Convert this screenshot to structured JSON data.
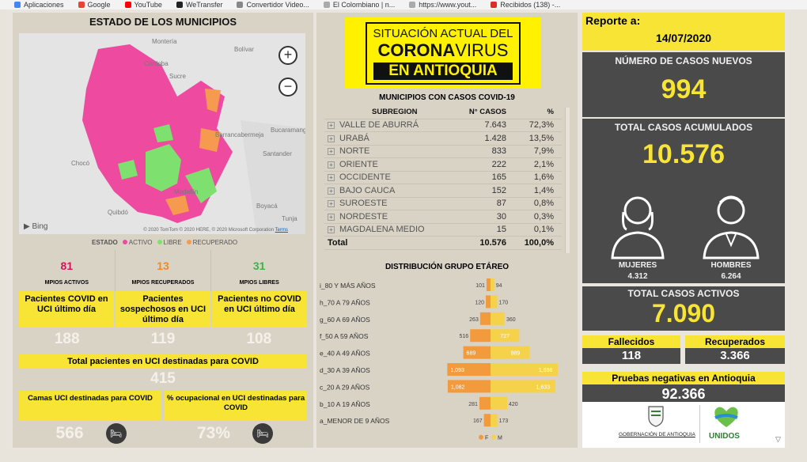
{
  "browser": {
    "bookmarks": [
      "Aplicaciones",
      "Google",
      "YouTube",
      "WeTransfer",
      "Convertidor Video...",
      "El Colombiano | n...",
      "https://www.yout...",
      "Recibidos (138) -..."
    ]
  },
  "municipios": {
    "title": "ESTADO DE LOS MUNICIPIOS",
    "map": {
      "zoom_in": "+",
      "zoom_out": "−",
      "bing": "Bing",
      "copyright": "© 2020 TomTom © 2020 HERE, © 2020 Microsoft Corporation",
      "terms": "Terms",
      "places": [
        "Montería",
        "Córdoba",
        "Bolívar",
        "Sucre",
        "Chocó",
        "Quibdó",
        "Barrancabermeja",
        "Bucaramanga",
        "Santander",
        "Medellín",
        "Tunja",
        "Boyacá"
      ]
    },
    "legend": {
      "label": "ESTADO",
      "activo": "ACTIVO",
      "libre": "LIBRE",
      "recuperado": "RECUPERADO",
      "color_activo": "#ee4aa0",
      "color_libre": "#7ee06e",
      "color_recuperado": "#f59a4e"
    },
    "kpis": [
      {
        "value": "81",
        "label": "MPIOS ACTIVOS",
        "color": "#d4145a"
      },
      {
        "value": "13",
        "label": "MPIOS RECUPERADOS",
        "color": "#f08a24"
      },
      {
        "value": "31",
        "label": "MPIOS LIBRES",
        "color": "#39b54a"
      }
    ]
  },
  "uci": {
    "boxes": [
      {
        "label": "Pacientes COVID en UCI último día",
        "value": "188"
      },
      {
        "label": "Pacientes sospechosos en UCI último día",
        "value": "119"
      },
      {
        "label": "Pacientes no COVID en UCI último día",
        "value": "108"
      }
    ],
    "total_label": "Total pacientes en UCI destinadas para COVID",
    "total_value": "415",
    "camas_label": "Camas UCI destinadas para COVID",
    "camas_value": "566",
    "ocupacion_label": "% ocupacional en UCI destinadas para COVID",
    "ocupacion_value": "73%"
  },
  "header": {
    "line1": "SITUACIÓN ACTUAL DEL",
    "line2a": "CORONA",
    "line2b": "VIRUS",
    "line3": "EN ANTIOQUIA"
  },
  "table": {
    "title": "MUNICIPIOS CON CASOS COVID-19",
    "col_subregion": "SUBREGION",
    "col_casos": "N° CASOS",
    "col_pct": "%",
    "rows": [
      {
        "name": "VALLE DE ABURRÁ",
        "casos": "7.643",
        "pct": "72,3%"
      },
      {
        "name": "URABÁ",
        "casos": "1.428",
        "pct": "13,5%"
      },
      {
        "name": "NORTE",
        "casos": "833",
        "pct": "7,9%"
      },
      {
        "name": "ORIENTE",
        "casos": "222",
        "pct": "2,1%"
      },
      {
        "name": "OCCIDENTE",
        "casos": "165",
        "pct": "1,6%"
      },
      {
        "name": "BAJO CAUCA",
        "casos": "152",
        "pct": "1,4%"
      },
      {
        "name": "SUROESTE",
        "casos": "87",
        "pct": "0,8%"
      },
      {
        "name": "NORDESTE",
        "casos": "30",
        "pct": "0,3%"
      },
      {
        "name": "MAGDALENA MEDIO",
        "casos": "15",
        "pct": "0,1%"
      }
    ],
    "total": {
      "name": "Total",
      "casos": "10.576",
      "pct": "100,0%"
    }
  },
  "chart_data": {
    "type": "bar",
    "title": "DISTRIBUCIÓN GRUPO ETÁREO",
    "categories": [
      "i_80 Y MÁS AÑOS",
      "h_70 A 79 AÑOS",
      "g_60 A 69 AÑOS",
      "f_50 A 59 AÑOS",
      "e_40 A 49 AÑOS",
      "d_30 A 39 AÑOS",
      "c_20 A 29 AÑOS",
      "b_10 A 19 AÑOS",
      "a_MENOR DE 9 AÑOS"
    ],
    "series": [
      {
        "name": "F",
        "values": [
          101,
          120,
          263,
          516,
          689,
          1093,
          1082,
          281,
          167
        ],
        "color": "#f39a3c"
      },
      {
        "name": "M",
        "values": [
          94,
          170,
          360,
          727,
          989,
          1698,
          1633,
          420,
          173
        ],
        "color": "#f6d24a"
      }
    ],
    "value_labels_f": [
      "101",
      "120",
      "263",
      "516",
      "689",
      "1,093",
      "1,082",
      "281",
      "167"
    ],
    "value_labels_m": [
      "94",
      "170",
      "360",
      "727",
      "989",
      "1,698",
      "1,633",
      "420",
      "173"
    ],
    "xlim": [
      0,
      1800
    ],
    "orientation": "horizontal-diverging",
    "legend": "bottom"
  },
  "reporte": {
    "label": "Reporte a:",
    "date": "14/07/2020",
    "nuevos_label": "NÚMERO DE CASOS NUEVOS",
    "nuevos": "994",
    "acumulados_label": "TOTAL CASOS ACUMULADOS",
    "acumulados": "10.576",
    "mujeres_label": "MUJERES",
    "mujeres": "4.312",
    "hombres_label": "HOMBRES",
    "hombres": "6.264",
    "activos_label": "TOTAL CASOS ACTIVOS",
    "activos": "7.090",
    "fallecidos_label": "Fallecidos",
    "fallecidos": "118",
    "recuperados_label": "Recuperados",
    "recuperados": "3.366",
    "pruebas_label": "Pruebas negativas en Antioquia",
    "pruebas": "92.366",
    "logo_gob": "GOBERNACIÓN DE ANTIOQUIA",
    "logo_unidos": "UNIDOS"
  }
}
